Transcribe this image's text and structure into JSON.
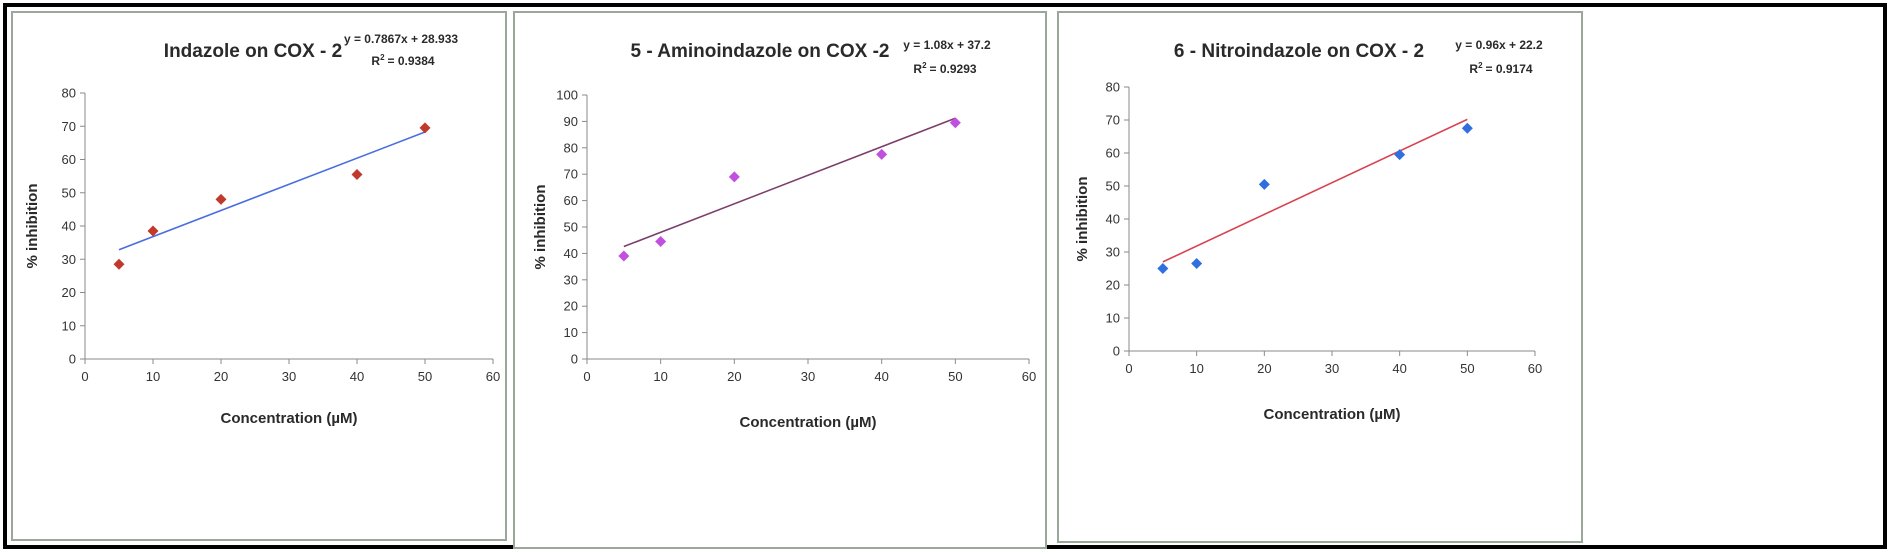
{
  "chart_data": [
    {
      "type": "scatter",
      "title": "Indazole on COX - 2",
      "equation": "y = 0.7867x + 28.933",
      "r2_label": "R",
      "r2_value": "= 0.9384",
      "xlabel": "Concentration (µM)",
      "ylabel": "% inhibition",
      "xlim": [
        0,
        60
      ],
      "ylim": [
        0,
        80
      ],
      "xticks": [
        "0",
        "10",
        "20",
        "30",
        "40",
        "50",
        "60"
      ],
      "yticks": [
        "0",
        "10",
        "20",
        "30",
        "40",
        "50",
        "60",
        "70",
        "80"
      ],
      "x": [
        5,
        10,
        20,
        40,
        50
      ],
      "y": [
        28.5,
        38.5,
        48,
        55.5,
        69.5
      ],
      "fit": {
        "slope": 0.7867,
        "intercept": 28.933
      },
      "grid": false,
      "marker_color": "#c0392b",
      "line_color": "#4a6ee0"
    },
    {
      "type": "scatter",
      "title": "5 - Aminoindazole on COX -2",
      "equation": "y = 1.08x + 37.2",
      "r2_label": "R",
      "r2_value": "= 0.9293",
      "xlabel": "Concentration (µM)",
      "ylabel": "% inhibition",
      "xlim": [
        0,
        60
      ],
      "ylim": [
        0,
        100
      ],
      "xticks": [
        "0",
        "10",
        "20",
        "30",
        "40",
        "50",
        "60"
      ],
      "yticks": [
        "0",
        "10",
        "20",
        "30",
        "40",
        "50",
        "60",
        "70",
        "80",
        "90",
        "100"
      ],
      "x": [
        5,
        10,
        20,
        40,
        50
      ],
      "y": [
        39,
        44.5,
        69,
        77.5,
        89.5
      ],
      "fit": {
        "slope": 1.08,
        "intercept": 37.2
      },
      "grid": false,
      "marker_color": "#c14fe0",
      "line_color": "#7b3e6a"
    },
    {
      "type": "scatter",
      "title": "6 - Nitroindazole on COX - 2",
      "equation": "y = 0.96x + 22.2",
      "r2_label": "R",
      "r2_value": "= 0.9174",
      "xlabel": "Concentration (µM)",
      "ylabel": "% inhibition",
      "xlim": [
        0,
        60
      ],
      "ylim": [
        0,
        80
      ],
      "xticks": [
        "0",
        "10",
        "20",
        "30",
        "40",
        "50",
        "60"
      ],
      "yticks": [
        "0",
        "10",
        "20",
        "30",
        "40",
        "50",
        "60",
        "70",
        "80"
      ],
      "x": [
        5,
        10,
        20,
        40,
        50
      ],
      "y": [
        25,
        26.5,
        50.5,
        59.5,
        67.5
      ],
      "fit": {
        "slope": 0.96,
        "intercept": 22.2
      },
      "grid": false,
      "marker_color": "#2f6fe0",
      "line_color": "#d9434f"
    }
  ]
}
